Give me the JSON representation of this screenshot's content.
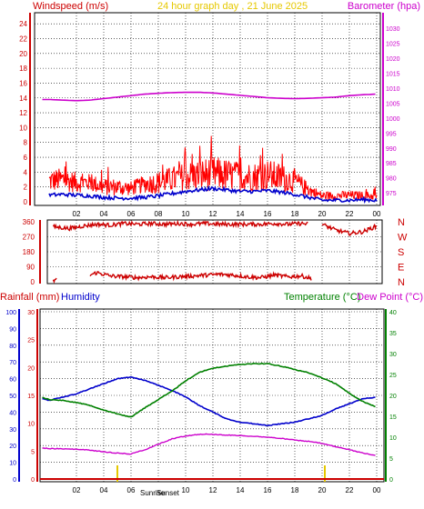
{
  "title": "24 hour graph day , 21 June 2025",
  "colors": {
    "wind": "#ff0000",
    "wind_avg": "#0000cc",
    "barometer": "#cc00cc",
    "direction": "#cc0000",
    "humidity": "#0000cc",
    "temperature": "#008000",
    "dewpoint": "#cc00cc",
    "rainfall": "#cc0000",
    "title": "#e6c800",
    "sun": "#e6c800",
    "grid": "#000000",
    "frame": "#000000"
  },
  "chart_data": [
    {
      "type": "line",
      "title": "24 hour graph day , 21 June 2025",
      "y_label_left": "Windspeed (m/s)",
      "y_label_right": "Barometer (hpa)",
      "x_ticks": [
        "02",
        "04",
        "06",
        "08",
        "10",
        "12",
        "14",
        "16",
        "18",
        "20",
        "22",
        "00"
      ],
      "y_ticks_left": [
        "0",
        "2",
        "4",
        "6",
        "8",
        "10",
        "12",
        "14",
        "16",
        "18",
        "20",
        "22",
        "24"
      ],
      "y_ticks_right": [
        "975",
        "980",
        "985",
        "990",
        "995",
        "1000",
        "1005",
        "1010",
        "1015",
        "1020",
        "1025",
        "1030"
      ],
      "xlim": [
        0,
        24
      ],
      "ylim_left": [
        0,
        25
      ],
      "ylim_right": [
        972,
        1034
      ],
      "series": [
        {
          "name": "Windspeed",
          "axis": "left",
          "x": [
            0,
            1,
            2,
            3,
            4,
            5,
            6,
            7,
            8,
            9,
            10,
            11,
            12,
            13,
            14,
            15,
            16,
            17,
            18,
            19,
            20,
            21,
            22,
            23,
            24
          ],
          "values": [
            2.8,
            3.0,
            2.6,
            2.6,
            2.0,
            2.0,
            1.8,
            2.4,
            2.6,
            3.0,
            3.4,
            3.6,
            3.8,
            3.6,
            3.4,
            3.4,
            3.6,
            3.2,
            2.8,
            1.6,
            0.8,
            0.8,
            0.9,
            0.8,
            0.8
          ],
          "spread": [
            1.6,
            1.6,
            1.4,
            1.2,
            1.2,
            1.2,
            1.0,
            1.2,
            1.6,
            1.8,
            2.0,
            2.2,
            2.4,
            2.2,
            2.0,
            2.0,
            2.2,
            2.0,
            1.6,
            1.0,
            0.6,
            0.6,
            0.6,
            0.6,
            0.6
          ]
        },
        {
          "name": "Average windspeed",
          "axis": "left",
          "x": [
            0,
            1,
            2,
            3,
            4,
            5,
            6,
            7,
            8,
            9,
            10,
            11,
            12,
            13,
            14,
            15,
            16,
            17,
            18,
            19,
            20,
            21,
            22,
            23,
            24
          ],
          "values": [
            0.9,
            1.0,
            0.9,
            0.8,
            0.6,
            0.5,
            0.5,
            0.6,
            0.8,
            1.1,
            1.4,
            1.6,
            1.8,
            1.6,
            1.4,
            1.4,
            1.5,
            1.3,
            1.0,
            0.6,
            0.2,
            0.2,
            0.2,
            0.3,
            0.2
          ]
        },
        {
          "name": "Barometer",
          "axis": "right",
          "x": [
            0,
            1,
            2,
            3,
            4,
            5,
            6,
            7,
            8,
            9,
            10,
            11,
            12,
            13,
            14,
            15,
            16,
            17,
            18,
            19,
            20,
            21,
            22,
            23,
            24
          ],
          "values": [
            1006.2,
            1006.0,
            1005.8,
            1006.0,
            1006.5,
            1007.0,
            1007.5,
            1008.0,
            1008.3,
            1008.5,
            1008.6,
            1008.6,
            1008.4,
            1008.0,
            1007.6,
            1007.2,
            1006.8,
            1006.6,
            1006.5,
            1006.6,
            1006.8,
            1007.0,
            1007.5,
            1007.8,
            1008.0
          ]
        }
      ]
    },
    {
      "type": "scatter",
      "y_labels": [
        "N",
        "W",
        "S",
        "E",
        "N"
      ],
      "y_ticks_left": [
        "0",
        "90",
        "180",
        "270",
        "360"
      ],
      "ylim": [
        0,
        360
      ],
      "series": [
        {
          "name": "Wind direction",
          "segments": [
            {
              "x": [
                0.3,
                1.5,
                2.5,
                3.5,
                4.5,
                5.5,
                6.5,
                7.5,
                8.5,
                9.5,
                10.5,
                11.5,
                12.5,
                13.5,
                14.5,
                15.5,
                16.5,
                17.5,
                18.5,
                19.0
              ],
              "values": [
                330,
                320,
                335,
                345,
                340,
                350,
                345,
                350,
                345,
                350,
                345,
                350,
                345,
                345,
                345,
                345,
                350,
                345,
                350,
                345
              ]
            },
            {
              "x": [
                0.3,
                0.6
              ],
              "values": [
                5,
                15
              ]
            },
            {
              "x": [
                3.0,
                3.5,
                4.5,
                5.5,
                6.5,
                7.5,
                8.5,
                9.5,
                10.5,
                11.5,
                12.5,
                13.5,
                14.5,
                15.5,
                16.5,
                17.5,
                18.5,
                19.2
              ],
              "values": [
                40,
                55,
                35,
                30,
                25,
                30,
                25,
                30,
                35,
                40,
                45,
                40,
                30,
                25,
                40,
                30,
                35,
                20
              ]
            },
            {
              "x": [
                20.0,
                21.0,
                22.0,
                23.0,
                24.0
              ],
              "values": [
                345,
                310,
                290,
                300,
                335
              ]
            }
          ]
        }
      ]
    },
    {
      "type": "line",
      "y_label_rain": "Rainfall (mm)",
      "y_label_humidity": "Humidity",
      "y_label_temperature": "Temperature (°C)",
      "y_label_dewpoint": "Dew Point (°C)",
      "x_ticks": [
        "02",
        "04",
        "06",
        "08",
        "10",
        "12",
        "14",
        "16",
        "18",
        "20",
        "22",
        "00"
      ],
      "y_ticks_humidity": [
        "0",
        "10",
        "20",
        "30",
        "40",
        "50",
        "60",
        "70",
        "80",
        "90",
        "100"
      ],
      "y_ticks_rain": [
        "0",
        "5",
        "10",
        "15",
        "20",
        "25",
        "30"
      ],
      "y_ticks_temperature": [
        "0",
        "5",
        "10",
        "15",
        "20",
        "25",
        "30",
        "35",
        "40"
      ],
      "annotations": [
        "Sunrise",
        "Sunset"
      ],
      "sunrise_x": 5.0,
      "sunset_x": 20.2,
      "xlim": [
        0,
        24
      ],
      "series": [
        {
          "name": "Humidity",
          "axis": "humidity",
          "x": [
            -0.5,
            0,
            1,
            2,
            3,
            4,
            5,
            6,
            7,
            8,
            9,
            10,
            11,
            12,
            13,
            14,
            15,
            16,
            17,
            18,
            19,
            20,
            21,
            22,
            23,
            24
          ],
          "values": [
            48,
            47,
            49,
            51,
            54,
            57,
            60,
            61,
            59,
            56,
            53,
            49,
            44,
            40,
            36,
            34,
            33,
            32,
            33,
            34,
            36,
            38,
            42,
            45,
            48,
            49
          ]
        },
        {
          "name": "Temperature",
          "axis": "temperature",
          "x": [
            -0.5,
            0,
            1,
            2,
            3,
            4,
            5,
            6,
            7,
            8,
            9,
            10,
            11,
            12,
            13,
            14,
            15,
            16,
            17,
            18,
            19,
            20,
            21,
            22,
            23,
            24
          ],
          "values": [
            19.5,
            19.0,
            18.8,
            18.3,
            17.6,
            16.5,
            15.6,
            14.8,
            17.0,
            19.0,
            21.0,
            23.5,
            25.5,
            26.5,
            27.0,
            27.4,
            27.6,
            27.6,
            27.0,
            26.2,
            25.4,
            24.2,
            22.8,
            20.5,
            18.5,
            17.2
          ]
        },
        {
          "name": "Dew Point",
          "axis": "temperature",
          "x": [
            -0.5,
            0,
            1,
            2,
            3,
            4,
            5,
            6,
            7,
            8,
            9,
            10,
            11,
            12,
            13,
            14,
            15,
            16,
            17,
            18,
            19,
            20,
            21,
            22,
            23,
            24
          ],
          "values": [
            7.4,
            7.3,
            7.2,
            7.1,
            6.9,
            6.5,
            6.2,
            6.0,
            7.0,
            8.3,
            9.6,
            10.3,
            10.7,
            10.7,
            10.5,
            10.4,
            10.2,
            10.0,
            9.7,
            9.3,
            9.0,
            8.5,
            7.7,
            7.0,
            6.2,
            5.6
          ]
        },
        {
          "name": "Rainfall",
          "axis": "rain",
          "x": [
            -0.5,
            24
          ],
          "values": [
            0,
            0
          ]
        }
      ]
    }
  ]
}
